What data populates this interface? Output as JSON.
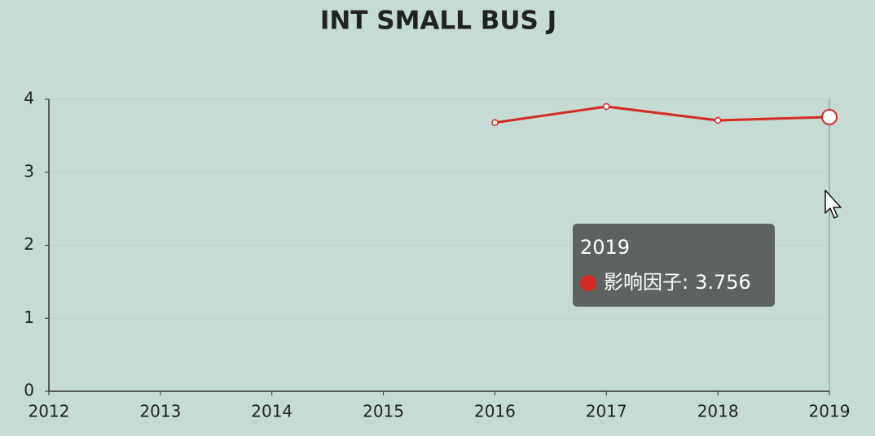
{
  "chart_data": {
    "type": "line",
    "title": "INT SMALL BUS J",
    "categories": [
      "2012",
      "2013",
      "2014",
      "2015",
      "2016",
      "2017",
      "2018",
      "2019"
    ],
    "series": [
      {
        "name": "影响因子",
        "color": "#d42a25",
        "values": [
          null,
          null,
          null,
          null,
          3.68,
          3.9,
          3.71,
          3.756
        ]
      }
    ],
    "ylim": [
      0,
      4
    ],
    "yticks": [
      0,
      1,
      2,
      3,
      4
    ],
    "grid": true,
    "tooltip_index": 7
  }
}
